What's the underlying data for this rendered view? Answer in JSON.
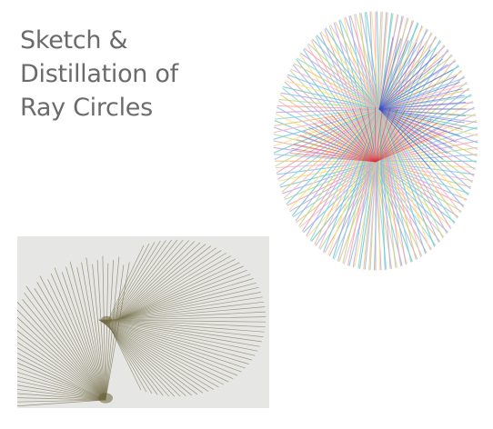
{
  "title": {
    "lines": [
      "Sketch &",
      "Distillation of",
      "Ray Circles"
    ],
    "color": "#6b6b6b"
  },
  "sketch": {
    "background": "#e6e6e4",
    "stroke": "#7c7654",
    "focus": "#6a6035"
  },
  "rays": {
    "palette": [
      "#f4a1a8",
      "#f0c07a",
      "#f7e07f",
      "#b6d98a",
      "#8fd3d6",
      "#79c3ec",
      "#a3b4ea",
      "#c7a4df",
      "#f3b6c8",
      "#6cc7c7"
    ],
    "hot_red": "#e0323a",
    "hot_blue": "#3d4fc8"
  }
}
